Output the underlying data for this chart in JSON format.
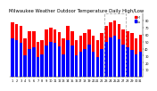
{
  "title": "Milwaukee Weather Outdoor Temperature Daily High/Low",
  "title_fontsize": 3.8,
  "background_color": "#ffffff",
  "high_color": "#ff0000",
  "low_color": "#0000ff",
  "days": [
    "1",
    "2",
    "3",
    "4",
    "5",
    "6",
    "7",
    "8",
    "9",
    "10",
    "11",
    "12",
    "13",
    "14",
    "15",
    "16",
    "17",
    "18",
    "19",
    "20",
    "21",
    "22",
    "23",
    "24",
    "25",
    "26",
    "27",
    "28",
    "29",
    "30",
    "31"
  ],
  "highs": [
    78,
    75,
    72,
    55,
    65,
    65,
    50,
    52,
    68,
    70,
    68,
    63,
    55,
    72,
    65,
    52,
    58,
    62,
    68,
    58,
    52,
    62,
    72,
    78,
    80,
    75,
    68,
    65,
    62,
    55,
    60
  ],
  "lows": [
    55,
    52,
    48,
    30,
    40,
    42,
    28,
    32,
    45,
    50,
    48,
    43,
    32,
    52,
    44,
    30,
    35,
    40,
    46,
    36,
    28,
    40,
    50,
    56,
    58,
    54,
    46,
    42,
    38,
    32,
    36
  ],
  "ylim": [
    0,
    90
  ],
  "yticks": [
    10,
    20,
    30,
    40,
    50,
    60,
    70,
    80
  ],
  "dashed_box_days": [
    23,
    24,
    25,
    26,
    27
  ],
  "legend_high_label": "Hi",
  "legend_low_label": "Lo"
}
